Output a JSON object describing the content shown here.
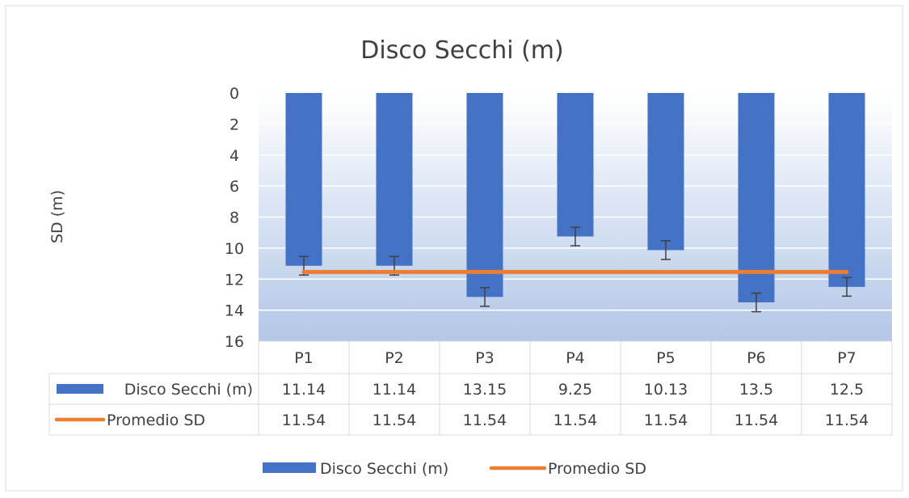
{
  "chart_data": {
    "type": "bar",
    "title": "Disco Secchi (m)",
    "ylabel": "SD (m)",
    "xlabel": "",
    "y_axis_inverted": true,
    "ylim": [
      0,
      16
    ],
    "yticks": [
      0,
      2,
      4,
      6,
      8,
      10,
      12,
      14,
      16
    ],
    "categories": [
      "P1",
      "P2",
      "P3",
      "P4",
      "P5",
      "P6",
      "P7"
    ],
    "series": [
      {
        "name": "Disco Secchi (m)",
        "kind": "bar",
        "color": "#4472C4",
        "values": [
          11.14,
          11.14,
          13.15,
          9.25,
          10.13,
          13.5,
          12.5
        ],
        "value_labels": [
          "11.14",
          "11.14",
          "13.15",
          "9.25",
          "10.13",
          "13.5",
          "12.5"
        ],
        "error_bar": 0.6
      },
      {
        "name": "Promedio SD",
        "kind": "line",
        "color": "#ED7D31",
        "values": [
          11.54,
          11.54,
          11.54,
          11.54,
          11.54,
          11.54,
          11.54
        ],
        "value_labels": [
          "11.54",
          "11.54",
          "11.54",
          "11.54",
          "11.54",
          "11.54",
          "11.54"
        ]
      }
    ],
    "data_table": true,
    "legend": "bottom",
    "grid": true,
    "plot_background": "gradient-white-to-light-blue"
  }
}
